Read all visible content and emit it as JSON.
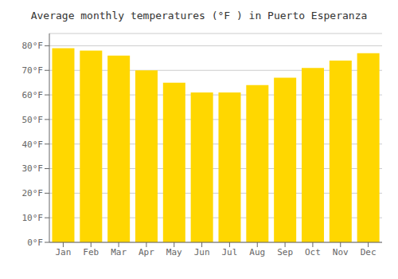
{
  "chart_data": {
    "type": "bar",
    "title": "Average monthly temperatures (°F ) in Puerto Esperanza",
    "categories": [
      "Jan",
      "Feb",
      "Mar",
      "Apr",
      "May",
      "Jun",
      "Jul",
      "Aug",
      "Sep",
      "Oct",
      "Nov",
      "Dec"
    ],
    "values": [
      79,
      78,
      76,
      70,
      65,
      61,
      61,
      64,
      67,
      71,
      74,
      77
    ],
    "color": "#FFD700",
    "ylim": [
      0,
      85
    ],
    "yticks": [
      {
        "value": 0,
        "label": "0°F"
      },
      {
        "value": 10,
        "label": "10°F"
      },
      {
        "value": 20,
        "label": "20°F"
      },
      {
        "value": 30,
        "label": "30°F"
      },
      {
        "value": 40,
        "label": "40°F"
      },
      {
        "value": 50,
        "label": "50°F"
      },
      {
        "value": 60,
        "label": "60°F"
      },
      {
        "value": 70,
        "label": "70°F"
      },
      {
        "value": 80,
        "label": "80°F"
      }
    ],
    "grid": true
  }
}
